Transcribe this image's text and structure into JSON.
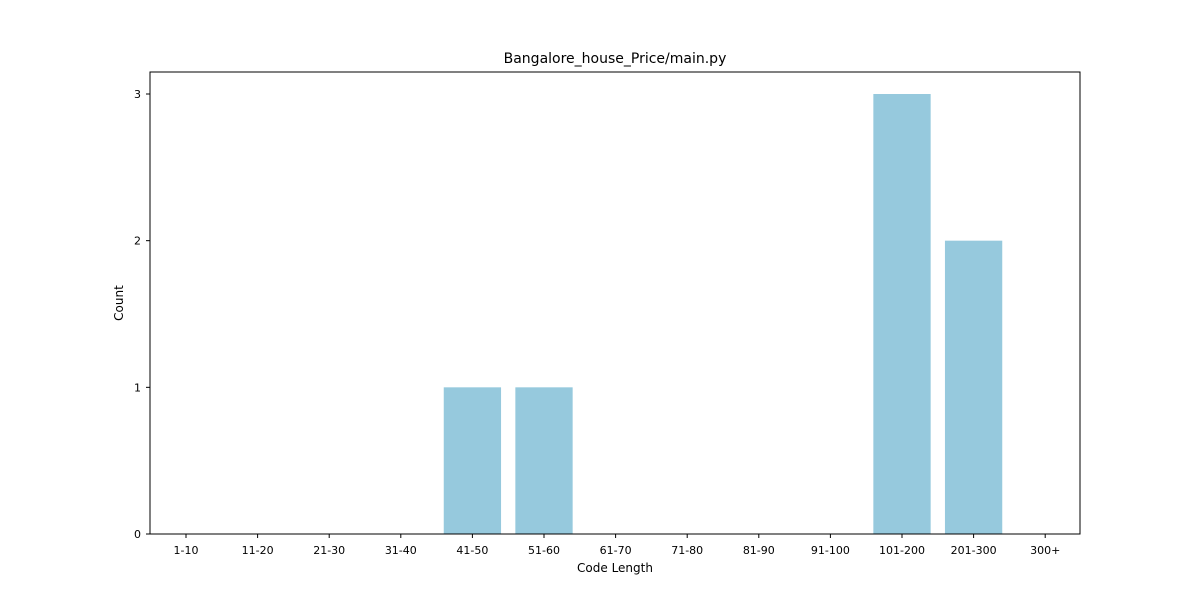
{
  "chart_data": {
    "type": "bar",
    "title": "Bangalore_house_Price/main.py",
    "xlabel": "Code Length",
    "ylabel": "Count",
    "categories": [
      "1-10",
      "11-20",
      "21-30",
      "31-40",
      "41-50",
      "51-60",
      "61-70",
      "71-80",
      "81-90",
      "91-100",
      "101-200",
      "201-300",
      "300+"
    ],
    "values": [
      0,
      0,
      0,
      0,
      1,
      1,
      0,
      0,
      0,
      0,
      3,
      2,
      0
    ],
    "ylim": [
      0,
      3.15
    ],
    "yticks": [
      "0",
      "1",
      "2",
      "3"
    ],
    "grid": false,
    "legend": "none",
    "bar_color": "#96c9dd"
  }
}
